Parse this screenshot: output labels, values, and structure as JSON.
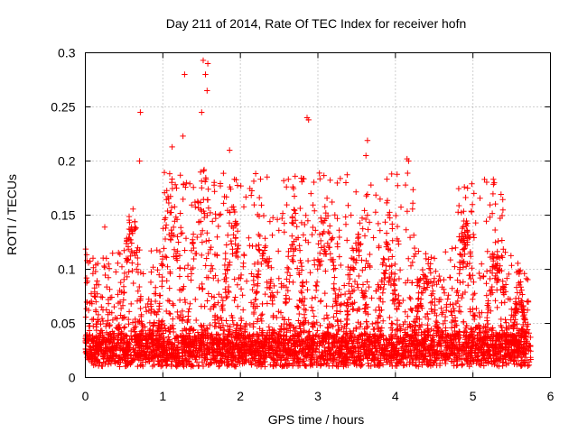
{
  "chart_data": {
    "type": "scatter",
    "title": "Day 211 of 2014, Rate Of TEC Index for receiver hofn",
    "xlabel": "GPS time / hours",
    "ylabel": "ROTI / TECUs",
    "xlim": [
      0,
      6
    ],
    "ylim": [
      0,
      0.3
    ],
    "x_ticks": [
      0,
      1,
      2,
      3,
      4,
      5,
      6
    ],
    "x_tick_labels": [
      "0",
      "1",
      "2",
      "3",
      "4",
      "5",
      "6"
    ],
    "y_ticks": [
      0,
      0.05,
      0.1,
      0.15,
      0.2,
      0.25,
      0.3
    ],
    "y_tick_labels": [
      "0",
      "0.05",
      "0.1",
      "0.15",
      "0.2",
      "0.25",
      "0.3"
    ],
    "grid": true,
    "marker": "+",
    "color": "#ff0000",
    "series": [
      {
        "name": "ROTI",
        "x_range": [
          0,
          5.75
        ],
        "typical_range": [
          0.01,
          0.04
        ],
        "notable_points": [
          {
            "x": 0.71,
            "y": 0.245
          },
          {
            "x": 0.7,
            "y": 0.2
          },
          {
            "x": 1.28,
            "y": 0.28
          },
          {
            "x": 1.26,
            "y": 0.223
          },
          {
            "x": 1.52,
            "y": 0.293
          },
          {
            "x": 1.55,
            "y": 0.28
          },
          {
            "x": 1.58,
            "y": 0.29
          },
          {
            "x": 1.57,
            "y": 0.265
          },
          {
            "x": 1.5,
            "y": 0.245
          },
          {
            "x": 1.12,
            "y": 0.213
          },
          {
            "x": 1.86,
            "y": 0.21
          },
          {
            "x": 2.86,
            "y": 0.24
          },
          {
            "x": 2.88,
            "y": 0.238
          },
          {
            "x": 3.64,
            "y": 0.219
          },
          {
            "x": 3.62,
            "y": 0.205
          },
          {
            "x": 4.15,
            "y": 0.202
          },
          {
            "x": 4.17,
            "y": 0.2
          },
          {
            "x": 4.89,
            "y": 0.176
          },
          {
            "x": 4.93,
            "y": 0.175
          },
          {
            "x": 0.25,
            "y": 0.139
          },
          {
            "x": 0.02,
            "y": 0.108
          },
          {
            "x": 0.04,
            "y": 0.106
          },
          {
            "x": 5.22,
            "y": 0.148
          },
          {
            "x": 5.7,
            "y": 0.07
          }
        ]
      }
    ]
  }
}
